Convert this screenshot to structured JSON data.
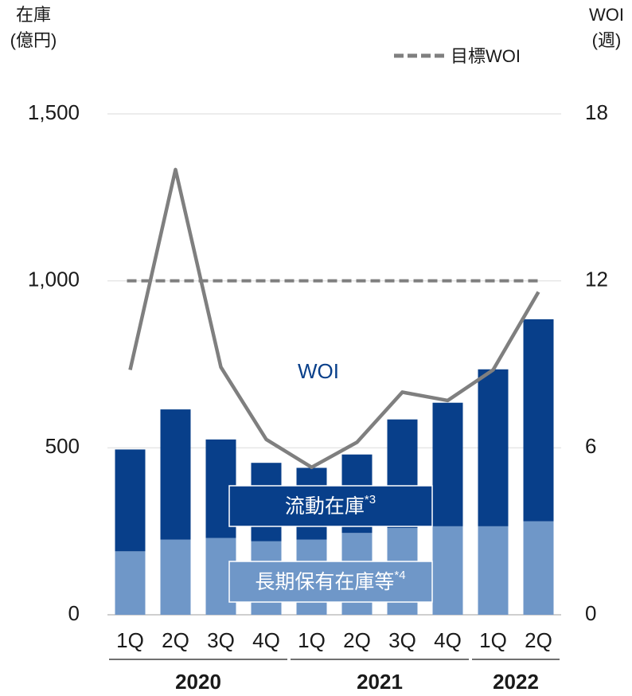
{
  "chart_data": {
    "type": "bar",
    "y_label": [
      "在庫",
      "(億円)"
    ],
    "y2_label": [
      "WOI",
      "(週)"
    ],
    "categories": [
      "1Q",
      "2Q",
      "3Q",
      "4Q",
      "1Q",
      "2Q",
      "3Q",
      "4Q",
      "1Q",
      "2Q"
    ],
    "x_groups": [
      {
        "label": "2020",
        "size": 4
      },
      {
        "label": "2021",
        "size": 4
      },
      {
        "label": "2022",
        "size": 2
      }
    ],
    "stacked": true,
    "series": [
      {
        "name": "長期保有在庫等",
        "note": "*4",
        "color": "#6f97c8",
        "values": [
          190,
          225,
          230,
          220,
          225,
          245,
          260,
          265,
          265,
          280
        ]
      },
      {
        "name": "流動在庫",
        "note": "*3",
        "color": "#083f8a",
        "values": [
          305,
          390,
          295,
          235,
          215,
          235,
          325,
          370,
          470,
          605
        ]
      },
      {
        "name": "WOI",
        "type": "line",
        "axis": "y2",
        "color": "#7f7f7f",
        "values": [
          8.8,
          16.0,
          8.9,
          6.3,
          5.3,
          6.2,
          8.0,
          7.7,
          8.8,
          11.6
        ]
      }
    ],
    "target": {
      "name": "目標WOI",
      "axis": "y2",
      "value": 12,
      "color": "#7f7f7f"
    },
    "ylim": [
      0,
      1500
    ],
    "yticks": [
      0,
      500,
      {
        "value": 1000,
        "label": "1,000"
      },
      {
        "value": 1500,
        "label": "1,500"
      }
    ],
    "y2lim": [
      0,
      18
    ],
    "y2ticks": [
      0,
      6,
      12,
      18
    ],
    "grid": true
  }
}
